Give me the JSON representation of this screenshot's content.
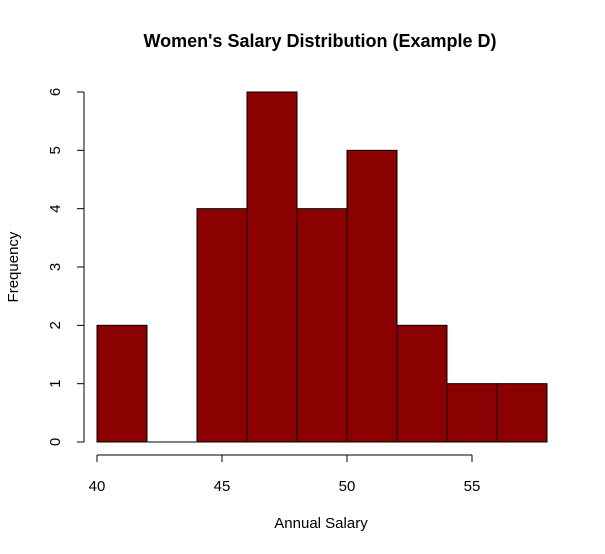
{
  "chart_data": {
    "type": "histogram",
    "title": "Women's Salary Distribution (Example D)",
    "xlabel": "Annual Salary",
    "ylabel": "Frequency",
    "bins": [
      {
        "start": 40,
        "end": 42,
        "count": 2
      },
      {
        "start": 42,
        "end": 44,
        "count": 0
      },
      {
        "start": 44,
        "end": 46,
        "count": 4
      },
      {
        "start": 46,
        "end": 48,
        "count": 6
      },
      {
        "start": 48,
        "end": 50,
        "count": 4
      },
      {
        "start": 50,
        "end": 52,
        "count": 5
      },
      {
        "start": 52,
        "end": 54,
        "count": 2
      },
      {
        "start": 54,
        "end": 56,
        "count": 1
      },
      {
        "start": 56,
        "end": 58,
        "count": 1
      }
    ],
    "xlim": [
      40,
      58
    ],
    "ylim": [
      0,
      6
    ],
    "x_ticks": [
      "40",
      "45",
      "50",
      "55"
    ],
    "y_ticks": [
      "0",
      "1",
      "2",
      "3",
      "4",
      "5",
      "6"
    ],
    "bar_color": "#8B0000",
    "grid": false
  }
}
